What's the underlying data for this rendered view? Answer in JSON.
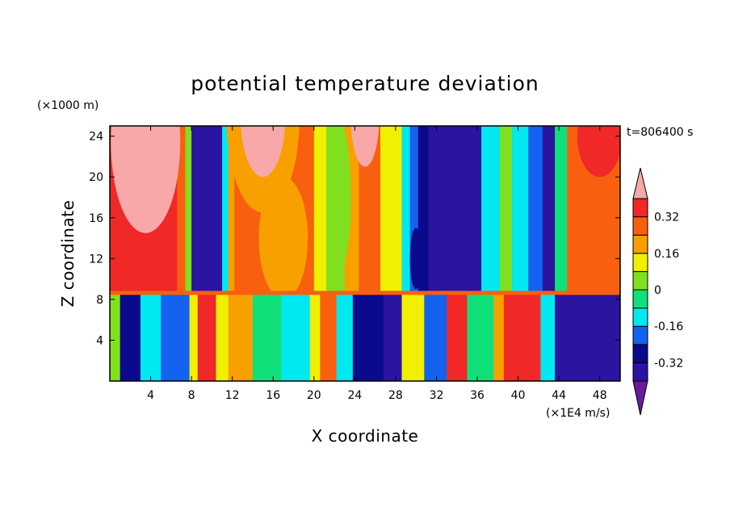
{
  "chart_data": {
    "type": "heatmap",
    "title": "potential temperature deviation",
    "xlabel": "X coordinate",
    "ylabel": "Z coordinate",
    "x_unit": "(×1E4 m/s)",
    "y_unit": "(×1000 m)",
    "time_label": "t=806400 s",
    "xlim": [
      0,
      50
    ],
    "ylim": [
      0,
      25
    ],
    "x_ticks": [
      4,
      8,
      12,
      16,
      20,
      24,
      28,
      32,
      36,
      40,
      44,
      48
    ],
    "y_ticks": [
      4,
      8,
      12,
      16,
      20,
      24
    ],
    "colorbar": {
      "levels": [
        -0.4,
        -0.32,
        -0.24,
        -0.16,
        -0.08,
        0,
        0.08,
        0.16,
        0.24,
        0.32,
        0.4
      ],
      "labels": [
        "-0.32",
        "-0.16",
        "0",
        "0.16",
        "0.32"
      ],
      "label_values": [
        -0.32,
        -0.16,
        0,
        0.16,
        0.32
      ],
      "colors": [
        "#6a1a9a",
        "#2a14a0",
        "#0a0a8c",
        "#1462f0",
        "#00e8f0",
        "#10e07a",
        "#80e020",
        "#f0f000",
        "#f8a000",
        "#f86010",
        "#f02828",
        "#f8a8a8"
      ],
      "extend": "both"
    },
    "layers": {
      "boundary_z": 8.6,
      "upper_columns": [
        {
          "x0": 0.0,
          "x1": 6.6,
          "value": 0.38
        },
        {
          "x0": 6.6,
          "x1": 7.4,
          "value": 0.26
        },
        {
          "x0": 7.4,
          "x1": 8.0,
          "value": 0.02
        },
        {
          "x0": 8.0,
          "x1": 11.0,
          "value": -0.38
        },
        {
          "x0": 11.0,
          "x1": 11.6,
          "value": -0.14
        },
        {
          "x0": 11.6,
          "x1": 12.2,
          "value": 0.22
        },
        {
          "x0": 12.2,
          "x1": 18.5,
          "value": 0.3
        },
        {
          "x0": 18.5,
          "x1": 20.0,
          "value": 0.24
        },
        {
          "x0": 20.0,
          "x1": 21.2,
          "value": 0.14
        },
        {
          "x0": 21.2,
          "x1": 23.0,
          "value": 0.04
        },
        {
          "x0": 23.0,
          "x1": 24.4,
          "value": 0.18
        },
        {
          "x0": 24.4,
          "x1": 26.5,
          "value": 0.3
        },
        {
          "x0": 26.5,
          "x1": 28.6,
          "value": 0.14
        },
        {
          "x0": 28.6,
          "x1": 29.4,
          "value": -0.1
        },
        {
          "x0": 29.4,
          "x1": 30.2,
          "value": -0.2
        },
        {
          "x0": 30.2,
          "x1": 31.2,
          "value": -0.3
        },
        {
          "x0": 31.2,
          "x1": 36.4,
          "value": -0.38
        },
        {
          "x0": 36.4,
          "x1": 38.2,
          "value": -0.12
        },
        {
          "x0": 38.2,
          "x1": 39.4,
          "value": 0.0
        },
        {
          "x0": 39.4,
          "x1": 41.0,
          "value": -0.14
        },
        {
          "x0": 41.0,
          "x1": 42.4,
          "value": -0.24
        },
        {
          "x0": 42.4,
          "x1": 43.6,
          "value": -0.38
        },
        {
          "x0": 43.6,
          "x1": 44.8,
          "value": -0.02
        },
        {
          "x0": 44.8,
          "x1": 45.6,
          "value": 0.26
        },
        {
          "x0": 45.6,
          "x1": 50.0,
          "value": 0.3
        }
      ],
      "lower_columns": [
        {
          "x0": 0.0,
          "x1": 1.0,
          "value": 0.05
        },
        {
          "x0": 1.0,
          "x1": 3.0,
          "value": -0.32
        },
        {
          "x0": 3.0,
          "x1": 5.0,
          "value": -0.1
        },
        {
          "x0": 5.0,
          "x1": 7.8,
          "value": -0.2
        },
        {
          "x0": 7.8,
          "x1": 8.6,
          "value": 0.1
        },
        {
          "x0": 8.6,
          "x1": 10.4,
          "value": 0.38
        },
        {
          "x0": 10.4,
          "x1": 11.6,
          "value": 0.1
        },
        {
          "x0": 11.6,
          "x1": 14.0,
          "value": 0.16
        },
        {
          "x0": 14.0,
          "x1": 16.8,
          "value": -0.06
        },
        {
          "x0": 16.8,
          "x1": 19.6,
          "value": -0.14
        },
        {
          "x0": 19.6,
          "x1": 20.6,
          "value": 0.1
        },
        {
          "x0": 20.6,
          "x1": 22.2,
          "value": 0.24
        },
        {
          "x0": 22.2,
          "x1": 23.8,
          "value": -0.1
        },
        {
          "x0": 23.8,
          "x1": 26.8,
          "value": -0.32
        },
        {
          "x0": 26.8,
          "x1": 28.6,
          "value": -0.38
        },
        {
          "x0": 28.6,
          "x1": 30.8,
          "value": 0.1
        },
        {
          "x0": 30.8,
          "x1": 33.0,
          "value": -0.24
        },
        {
          "x0": 33.0,
          "x1": 35.0,
          "value": 0.36
        },
        {
          "x0": 35.0,
          "x1": 37.6,
          "value": -0.06
        },
        {
          "x0": 37.6,
          "x1": 38.6,
          "value": 0.2
        },
        {
          "x0": 38.6,
          "x1": 42.2,
          "value": 0.38
        },
        {
          "x0": 42.2,
          "x1": 43.6,
          "value": -0.1
        },
        {
          "x0": 43.6,
          "x1": 50.0,
          "value": -0.38
        }
      ],
      "upper_bulges": [
        {
          "x": 3.5,
          "z": 23.5,
          "w": 3.4,
          "h": 9.0,
          "value": 0.4
        },
        {
          "x": 15.0,
          "z": 26.0,
          "w": 3.6,
          "h": 9.5,
          "value": 0.16
        },
        {
          "x": 15.0,
          "z": 26.0,
          "w": 2.2,
          "h": 6.0,
          "value": 0.4
        },
        {
          "x": 25.0,
          "z": 26.0,
          "w": 1.4,
          "h": 5.0,
          "value": 0.4
        },
        {
          "x": 17.0,
          "z": 14.0,
          "w": 2.4,
          "h": 6.0,
          "value": 0.16
        },
        {
          "x": 22.6,
          "z": 18.0,
          "w": 1.0,
          "h": 7.0,
          "value": 0.0
        },
        {
          "x": 30.0,
          "z": 12.0,
          "w": 0.6,
          "h": 3.0,
          "value": -0.3
        },
        {
          "x": 48.0,
          "z": 24.0,
          "w": 2.2,
          "h": 4.0,
          "value": 0.34
        }
      ]
    }
  }
}
